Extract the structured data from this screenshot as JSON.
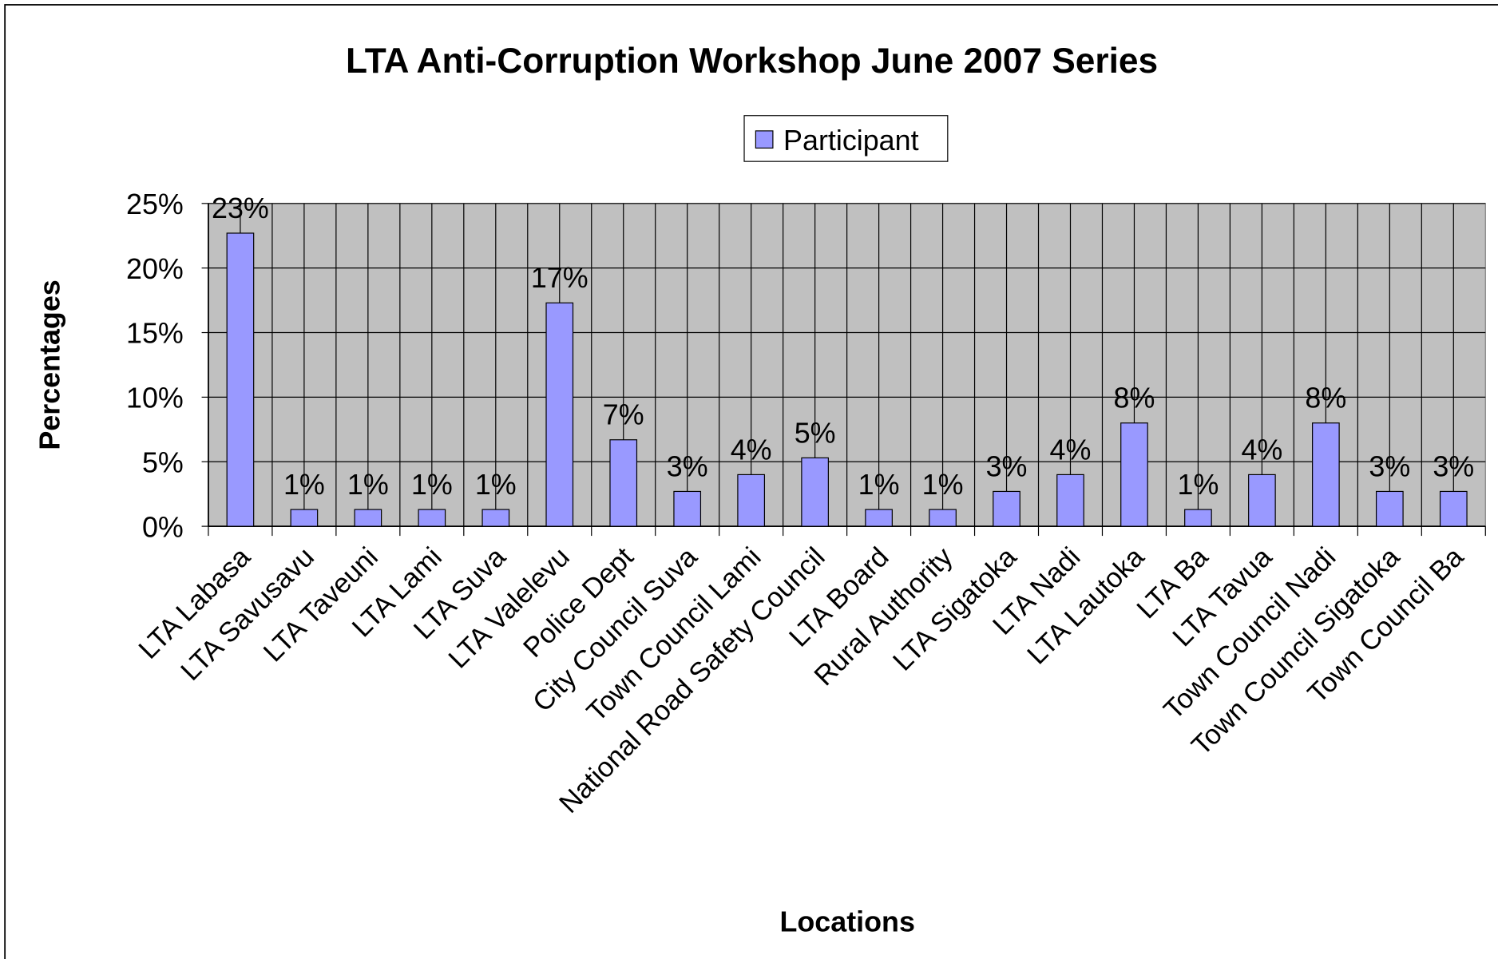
{
  "chart_data": {
    "type": "bar",
    "title": "LTA Anti-Corruption Workshop June 2007 Series",
    "x_label": "Locations",
    "y_label": "Percentages",
    "categories": [
      "LTA Labasa",
      "LTA Savusavu",
      "LTA Taveuni",
      "LTA Lami",
      "LTA Suva",
      "LTA Valelevu",
      "Police Dept",
      "City Council Suva",
      "Town Council Lami",
      "National Road Safety Council",
      "LTA Board",
      "Rural Authority",
      "LTA Sigatoka",
      "LTA Nadi",
      "LTA Lautoka",
      "LTA Ba",
      "LTA Tavua",
      "Town Council Nadi",
      "Town Council Sigatoka",
      "Town Council Ba"
    ],
    "series": [
      {
        "name": "Participant",
        "color": "#9999ff",
        "values": [
          22.7,
          1.3,
          1.3,
          1.3,
          1.3,
          17.3,
          6.7,
          2.7,
          4.0,
          5.3,
          1.3,
          1.3,
          2.7,
          4.0,
          8.0,
          1.3,
          4.0,
          8.0,
          2.7,
          2.7
        ],
        "value_labels": [
          "23%",
          "1%",
          "1%",
          "1%",
          "1%",
          "17%",
          "7%",
          "3%",
          "4%",
          "5%",
          "1%",
          "1%",
          "3%",
          "4%",
          "8%",
          "1%",
          "4%",
          "8%",
          "3%",
          "3%"
        ]
      }
    ],
    "ylim": [
      0,
      25
    ],
    "yticks": [
      {
        "value": 0,
        "label": "0%"
      },
      {
        "value": 5,
        "label": "5%"
      },
      {
        "value": 10,
        "label": "10%"
      },
      {
        "value": 15,
        "label": "15%"
      },
      {
        "value": 20,
        "label": "20%"
      },
      {
        "value": 25,
        "label": "25%"
      }
    ],
    "grid": true,
    "legend": "top"
  }
}
